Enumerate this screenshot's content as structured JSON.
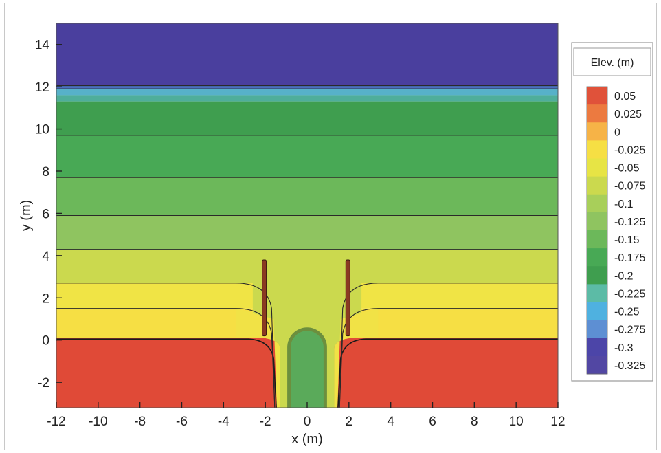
{
  "chart_data": {
    "type": "heatmap",
    "subtype": "filled-contour",
    "xlabel": "x (m)",
    "ylabel": "y (m)",
    "xlim": [
      -12,
      12
    ],
    "ylim": [
      -3.2,
      15
    ],
    "xticks": [
      -12,
      -10,
      -8,
      -6,
      -4,
      -2,
      0,
      2,
      4,
      6,
      8,
      10,
      12
    ],
    "yticks": [
      -2,
      0,
      2,
      4,
      6,
      8,
      10,
      12,
      14
    ],
    "grid": false,
    "legend": {
      "title": "Elev. (m)",
      "placement": "right",
      "levels": [
        {
          "label": "0.05",
          "color": "#e0523a"
        },
        {
          "label": "0.025",
          "color": "#ec7a40"
        },
        {
          "label": "0",
          "color": "#f6b347"
        },
        {
          "label": "-0.025",
          "color": "#f6df44"
        },
        {
          "label": "-0.05",
          "color": "#e7e445"
        },
        {
          "label": "-0.075",
          "color": "#cbd94e"
        },
        {
          "label": "-0.1",
          "color": "#a8cf5a"
        },
        {
          "label": "-0.125",
          "color": "#8fc460"
        },
        {
          "label": "-0.15",
          "color": "#6cb85a"
        },
        {
          "label": "-0.175",
          "color": "#48a955"
        },
        {
          "label": "-0.2",
          "color": "#3f9e4f"
        },
        {
          "label": "-0.225",
          "color": "#5cbba6"
        },
        {
          "label": "-0.25",
          "color": "#4fb1e0"
        },
        {
          "label": "-0.275",
          "color": "#5d8fd3"
        },
        {
          "label": "-0.3",
          "color": "#4c45a8"
        },
        {
          "label": "-0.325",
          "color": "#5247a3"
        }
      ]
    },
    "bands": [
      {
        "y_from": 12.1,
        "y_to": 15,
        "color": "#4a3f9e"
      },
      {
        "y_from": 11.9,
        "y_to": 12.1,
        "color": "#4a6fbd"
      },
      {
        "y_from": 11.6,
        "y_to": 11.9,
        "color": "#57b1c9"
      },
      {
        "y_from": 11.3,
        "y_to": 11.6,
        "color": "#4fae9a"
      },
      {
        "y_from": 9.7,
        "y_to": 11.3,
        "color": "#3f9e4f"
      },
      {
        "y_from": 7.7,
        "y_to": 9.7,
        "color": "#48a955"
      },
      {
        "y_from": 5.9,
        "y_to": 7.7,
        "color": "#6cb85a"
      },
      {
        "y_from": 4.3,
        "y_to": 5.9,
        "color": "#8fc460"
      },
      {
        "y_from": 2.7,
        "y_to": 4.3,
        "color": "#cbd94e"
      },
      {
        "y_from": 1.5,
        "y_to": 2.7,
        "color": "#f0e445"
      },
      {
        "y_from": 0.1,
        "y_to": 1.5,
        "color": "#f6df44"
      },
      {
        "y_from": -3.2,
        "y_to": 0.1,
        "color": "#e04a37"
      }
    ],
    "contour_lines_y": [
      12.05,
      11.9,
      9.7,
      7.7,
      5.9,
      4.3,
      2.7,
      1.5
    ],
    "structures": {
      "breakwaters": [
        {
          "x": -2.05,
          "y_from": 0.2,
          "y_to": 3.8
        },
        {
          "x": 1.95,
          "y_from": 0.2,
          "y_to": 3.8
        }
      ],
      "channel_half_width": 1.3,
      "island": {
        "x_from": -0.95,
        "x_to": 0.95,
        "y_from": -3.2,
        "y_to": 0.6,
        "color": "#5aaa5a",
        "rim_color": "#6c8f3e"
      }
    }
  }
}
